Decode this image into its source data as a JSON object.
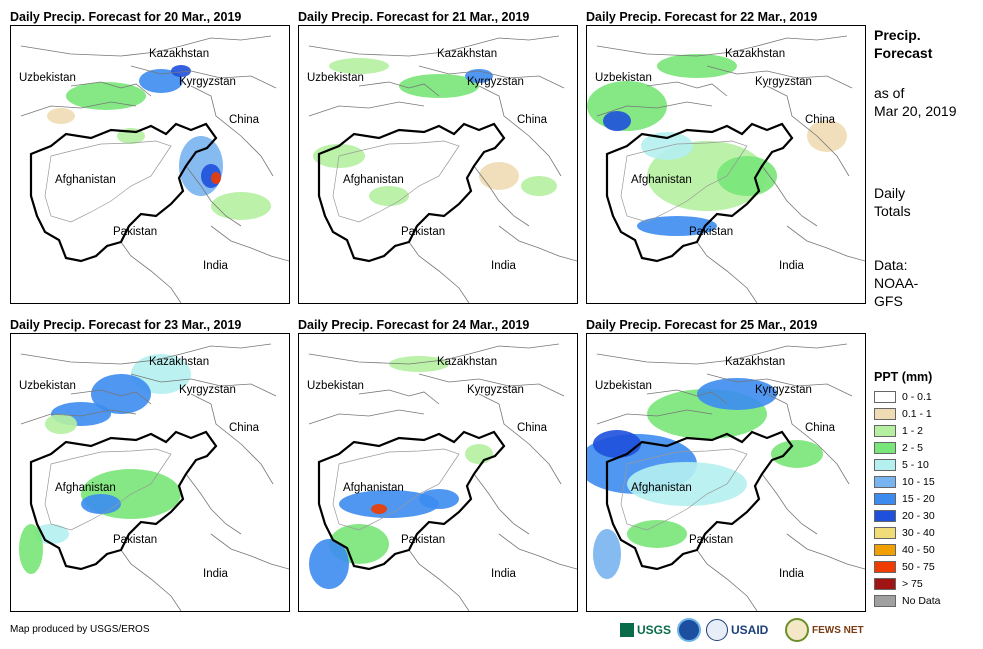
{
  "panels": [
    {
      "title": "Daily Precip. Forecast for 20 Mar., 2019",
      "pattern": "d20"
    },
    {
      "title": "Daily Precip. Forecast for 21 Mar., 2019",
      "pattern": "d21"
    },
    {
      "title": "Daily Precip. Forecast for 22 Mar., 2019",
      "pattern": "d22"
    },
    {
      "title": "Daily Precip. Forecast for 23 Mar., 2019",
      "pattern": "d23"
    },
    {
      "title": "Daily Precip. Forecast for 24 Mar., 2019",
      "pattern": "d24"
    },
    {
      "title": "Daily Precip. Forecast for 25 Mar., 2019",
      "pattern": "d25"
    }
  ],
  "map_labels": {
    "kazakhstan": "Kazakhstan",
    "uzbekistan": "Uzbekistan",
    "kyrgyzstan": "Kyrgyzstan",
    "china": "China",
    "afghanistan": "Afghanistan",
    "pakistan": "Pakistan",
    "india": "India"
  },
  "sidebar": {
    "heading_line1": "Precip.",
    "heading_line2": "Forecast",
    "asof_line1": "as of",
    "asof_line2": "Mar 20, 2019",
    "daily_line1": "Daily",
    "daily_line2": "Totals",
    "data_line1": "Data:",
    "data_line2": "NOAA-",
    "data_line3": "GFS"
  },
  "legend": {
    "title": "PPT (mm)",
    "items": [
      {
        "label": "0 - 0.1",
        "color": "#ffffff"
      },
      {
        "label": "0.1 - 1",
        "color": "#f0dcb4"
      },
      {
        "label": "1 - 2",
        "color": "#b4f0a0"
      },
      {
        "label": "2 - 5",
        "color": "#78e678"
      },
      {
        "label": "5 - 10",
        "color": "#b4f0f0"
      },
      {
        "label": "10 - 15",
        "color": "#78b4f0"
      },
      {
        "label": "15 - 20",
        "color": "#3c8cf0"
      },
      {
        "label": "20 - 30",
        "color": "#1e50dc"
      },
      {
        "label": "30 - 40",
        "color": "#f0dc78"
      },
      {
        "label": "40 - 50",
        "color": "#f0a000"
      },
      {
        "label": "50 - 75",
        "color": "#f03c00"
      },
      {
        "label": "> 75",
        "color": "#a01414"
      },
      {
        "label": "No Data",
        "color": "#a0a0a0"
      }
    ]
  },
  "footer": "Map produced by USGS/EROS",
  "logos": [
    "USGS",
    "USAID",
    "FEWS NET"
  ]
}
